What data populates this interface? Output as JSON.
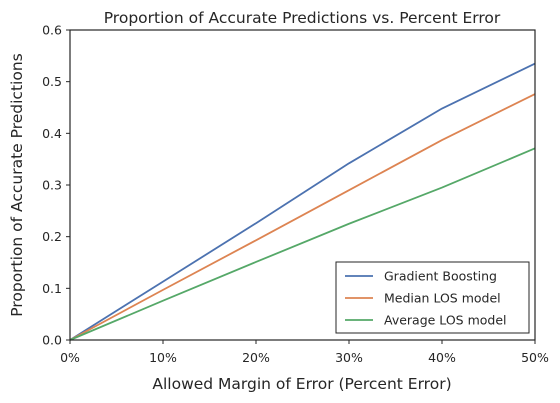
{
  "chart_data": {
    "type": "line",
    "title": "Proportion of Accurate Predictions vs. Percent Error",
    "xlabel": "Allowed Margin of Error (Percent Error)",
    "ylabel": "Proportion of Accurate Predictions",
    "x": [
      0,
      10,
      20,
      30,
      40,
      50
    ],
    "xticks": [
      "0%",
      "10%",
      "20%",
      "30%",
      "40%",
      "50%"
    ],
    "yticks": [
      "0.0",
      "0.1",
      "0.2",
      "0.3",
      "0.4",
      "0.5",
      "0.6"
    ],
    "xlim": [
      0,
      50
    ],
    "ylim": [
      0,
      0.6
    ],
    "grid": false,
    "legend_position": "bottom-right",
    "series": [
      {
        "name": "Gradient Boosting",
        "color": "#4c72b0",
        "values": [
          0,
          0.113,
          0.226,
          0.342,
          0.448,
          0.535
        ]
      },
      {
        "name": "Median LOS model",
        "color": "#dd8452",
        "values": [
          0,
          0.097,
          0.193,
          0.29,
          0.387,
          0.476
        ]
      },
      {
        "name": "Average LOS model",
        "color": "#55a868",
        "values": [
          0,
          0.076,
          0.151,
          0.225,
          0.295,
          0.371
        ]
      }
    ]
  }
}
